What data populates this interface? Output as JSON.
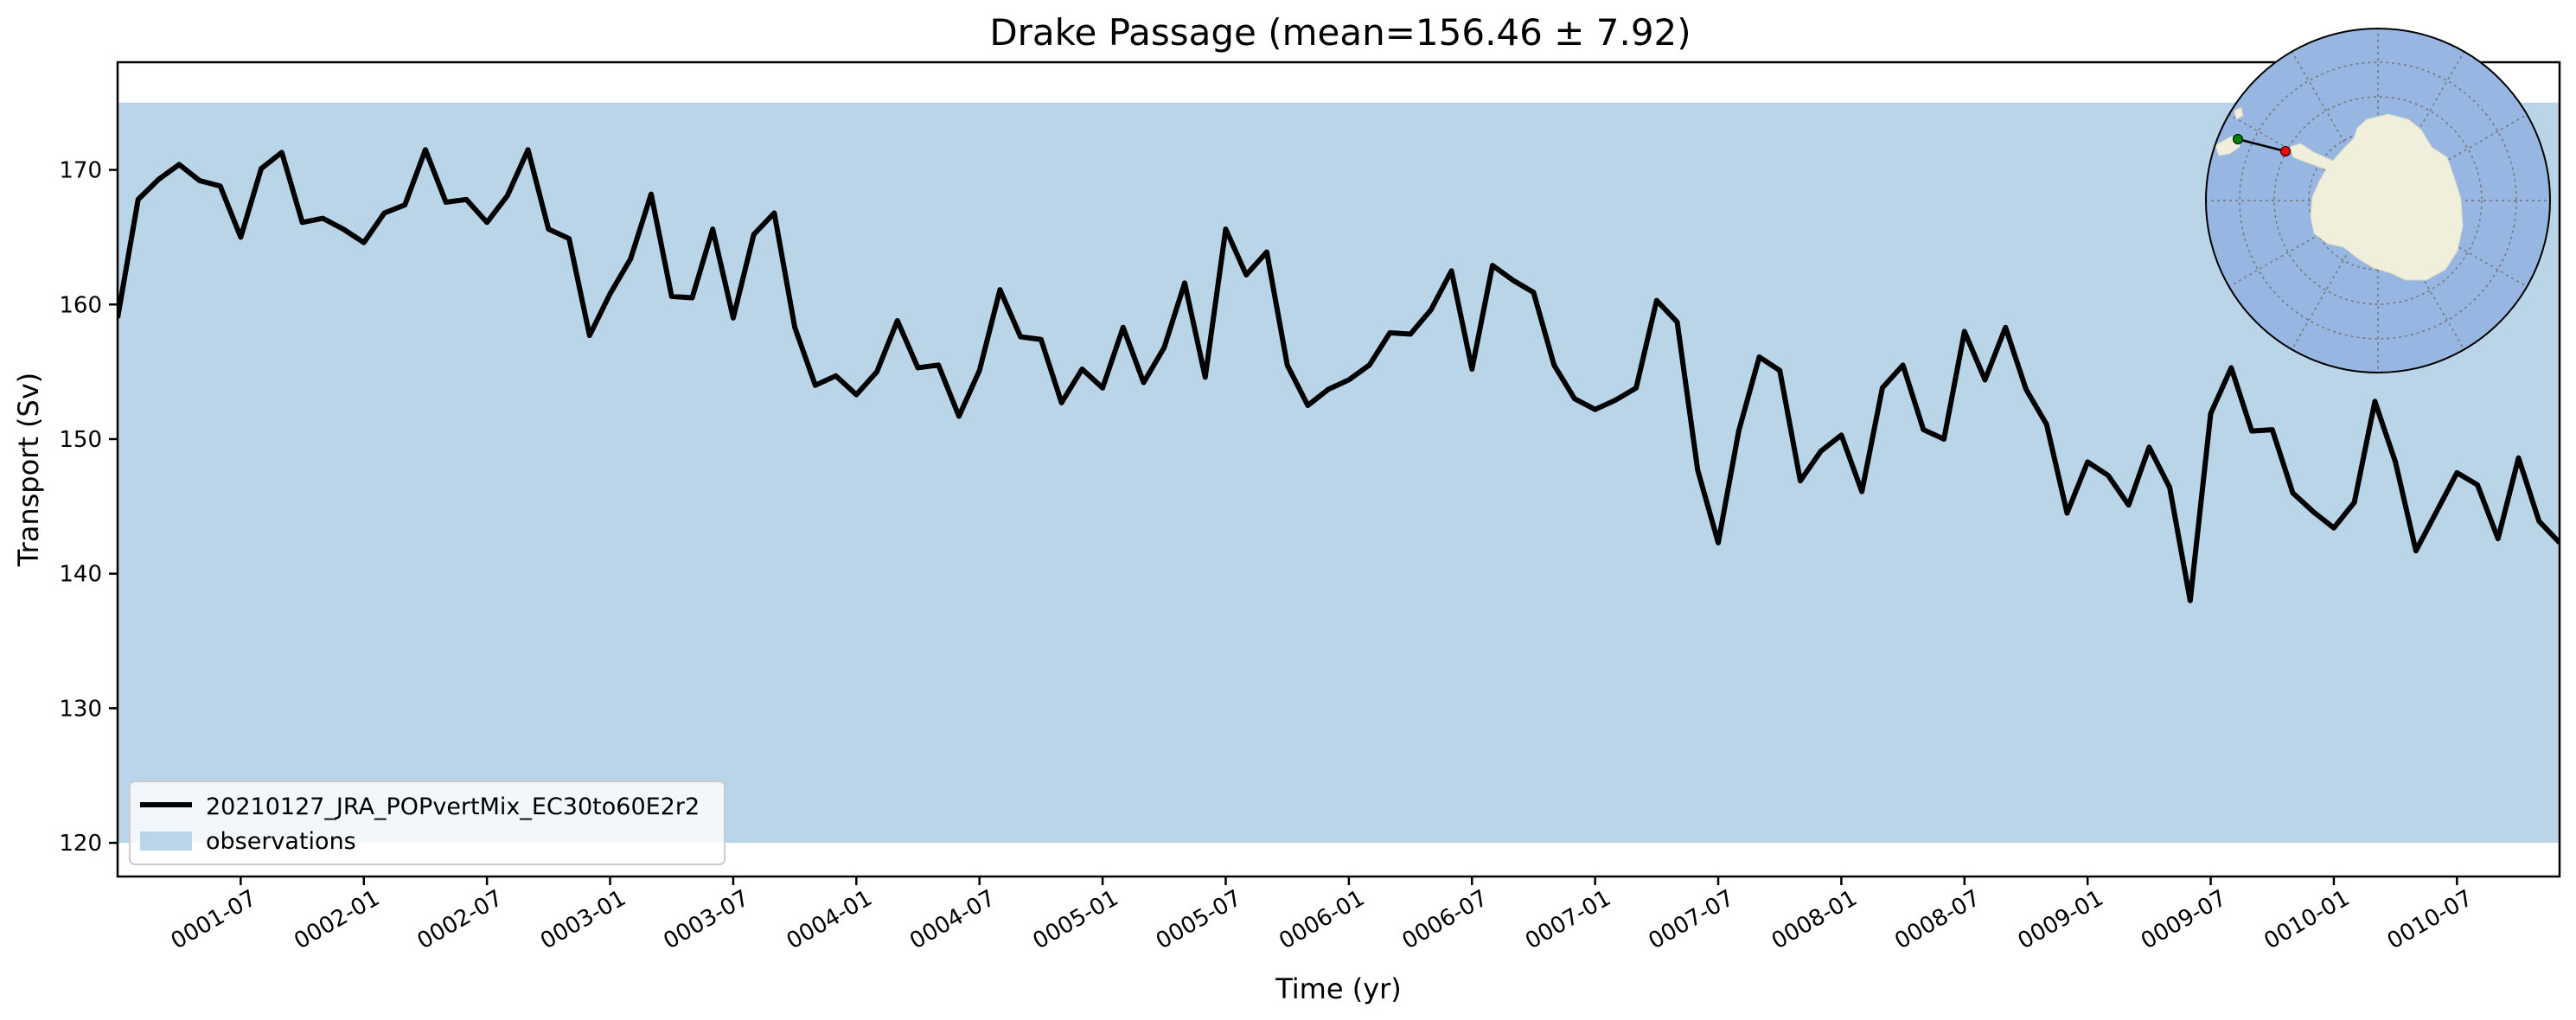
{
  "chart_data": {
    "type": "line",
    "title": "Drake Passage (mean=156.46 ± 7.92)",
    "xlabel": "Time (yr)",
    "ylabel": "Transport (Sv)",
    "ylim": [
      117.5,
      178
    ],
    "yticks": [
      120,
      130,
      140,
      150,
      160,
      170
    ],
    "xticks": [
      "0001-07",
      "0002-01",
      "0002-07",
      "0003-01",
      "0003-07",
      "0004-01",
      "0004-07",
      "0005-01",
      "0005-07",
      "0006-01",
      "0006-07",
      "0007-01",
      "0007-07",
      "0008-01",
      "0008-07",
      "0009-01",
      "0009-07",
      "0010-01",
      "0010-07"
    ],
    "band": {
      "name": "observations",
      "low": 120,
      "high": 175,
      "color": "#bad5e8"
    },
    "series": [
      {
        "name": "20210127_JRA_POPvertMix_EC30to60E2r2",
        "color": "#000000",
        "x_start_month": 1,
        "values": [
          159,
          167.8,
          169.3,
          170.4,
          169.2,
          168.8,
          165,
          170.1,
          171.3,
          166.1,
          166.4,
          165.6,
          164.6,
          166.8,
          167.4,
          171.5,
          167.6,
          167.8,
          166.1,
          168.1,
          171.5,
          165.6,
          164.9,
          157.7,
          160.8,
          163.4,
          168.2,
          160.6,
          160.5,
          165.6,
          159,
          165.2,
          166.8,
          158.3,
          154,
          154.7,
          153.3,
          155,
          158.8,
          155.3,
          155.5,
          151.7,
          155.1,
          161.1,
          157.6,
          157.4,
          152.7,
          155.2,
          153.8,
          158.3,
          154.2,
          156.8,
          161.6,
          154.6,
          165.6,
          162.2,
          163.9,
          155.5,
          152.5,
          153.7,
          154.4,
          155.5,
          157.9,
          157.8,
          159.6,
          162.5,
          155.2,
          162.9,
          161.8,
          160.9,
          155.5,
          153,
          152.2,
          152.9,
          153.8,
          160.3,
          158.7,
          147.7,
          142.3,
          150.6,
          156.1,
          155.1,
          146.9,
          149.1,
          150.3,
          146.1,
          153.8,
          155.5,
          150.7,
          150,
          158,
          154.4,
          158.3,
          153.7,
          151.1,
          144.5,
          148.3,
          147.3,
          145.1,
          149.4,
          146.4,
          138,
          151.9,
          155.3,
          150.6,
          150.7,
          146,
          144.6,
          143.4,
          145.3,
          152.8,
          148.3,
          141.7,
          144.6,
          147.5,
          146.6,
          142.6,
          148.6,
          143.9,
          142.3
        ]
      }
    ],
    "legend": {
      "location": "lower-left"
    },
    "inset_map": {
      "projection": "south-polar-stereographic",
      "ocean_color": "#97b6e1",
      "land_color": "#efefdb",
      "start_marker_color": "#008000",
      "end_marker_color": "#ff0000"
    }
  }
}
